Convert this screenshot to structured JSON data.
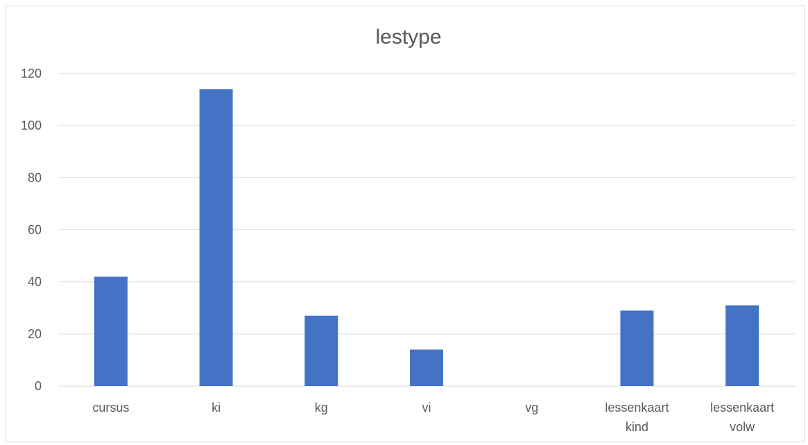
{
  "chart_data": {
    "type": "bar",
    "title": "lestype",
    "categories": [
      [
        "cursus"
      ],
      [
        "ki"
      ],
      [
        "kg"
      ],
      [
        "vi"
      ],
      [
        "vg"
      ],
      [
        "lessenkaart",
        "kind"
      ],
      [
        "lessenkaart",
        "volw"
      ]
    ],
    "values": [
      42,
      114,
      27,
      14,
      0,
      29,
      31
    ],
    "ylim": [
      0,
      120
    ],
    "yticks": [
      0,
      20,
      40,
      60,
      80,
      100,
      120
    ],
    "bar_color": "#4472C4",
    "grid": true,
    "legend": "none"
  }
}
